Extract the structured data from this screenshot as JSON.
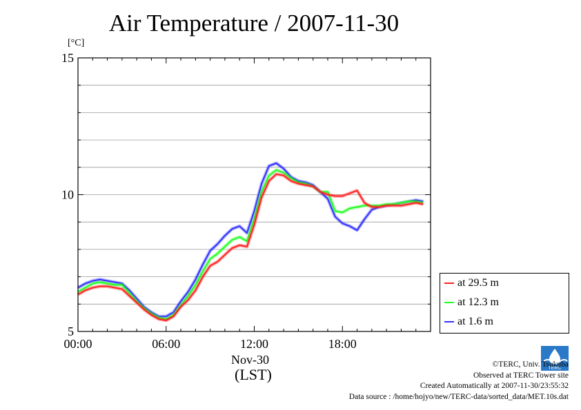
{
  "title": "Air Temperature / 2007-11-30",
  "unit_label": "[°C]",
  "date_label": "Nov-30",
  "tz_label": "(LST)",
  "colors": {
    "at_29_5": "#ff2020",
    "at_12_3": "#20ff20",
    "at_1_6": "#3030ff"
  },
  "legend": [
    {
      "label": "at 29.5 m",
      "color": "#ff2020"
    },
    {
      "label": "at 12.3 m",
      "color": "#20ff20"
    },
    {
      "label": "at 1.6 m",
      "color": "#3030ff"
    }
  ],
  "credits": {
    "copyright": "©TERC, Univ. Tsukuba",
    "site": "Observed at TERC Tower site",
    "created": "Created Automatically at 2007-11-30/23:55:32",
    "source": "Data source : /home/hojyo/new/TERC-data/sorted_data/MET.10s.dat"
  },
  "logo_text": "TERC",
  "chart_data": {
    "type": "line",
    "title": "Air Temperature / 2007-11-30",
    "ylabel": "[°C]",
    "xlabel": "(LST)",
    "ylim": [
      5,
      15
    ],
    "xlim": [
      0,
      24
    ],
    "x_ticks": [
      "00:00",
      "06:00",
      "12:00",
      "18:00"
    ],
    "y_ticks": [
      "5",
      "10",
      "15"
    ],
    "grid": true,
    "legend_position": "right",
    "x": [
      0,
      0.5,
      1,
      1.5,
      2,
      2.5,
      3,
      3.5,
      4,
      4.5,
      5,
      5.5,
      6,
      6.5,
      7,
      7.5,
      8,
      8.5,
      9,
      9.5,
      10,
      10.5,
      11,
      11.5,
      12,
      12.5,
      13,
      13.5,
      14,
      14.5,
      15,
      15.5,
      16,
      16.5,
      17,
      17.5,
      18,
      18.5,
      19,
      19.5,
      20,
      20.5,
      21,
      21.5,
      22,
      22.5,
      23,
      23.5
    ],
    "series": [
      {
        "name": "at 29.5 m",
        "values": [
          6.35,
          6.5,
          6.6,
          6.65,
          6.65,
          6.6,
          6.55,
          6.3,
          6.05,
          5.8,
          5.6,
          5.45,
          5.4,
          5.55,
          5.9,
          6.15,
          6.5,
          7.0,
          7.4,
          7.55,
          7.8,
          8.05,
          8.15,
          8.1,
          8.9,
          9.9,
          10.5,
          10.75,
          10.7,
          10.5,
          10.4,
          10.35,
          10.3,
          10.1,
          10.0,
          9.95,
          9.95,
          10.05,
          10.15,
          9.7,
          9.55,
          9.55,
          9.6,
          9.6,
          9.6,
          9.65,
          9.7,
          9.65
        ]
      },
      {
        "name": "at 12.3 m",
        "values": [
          6.45,
          6.6,
          6.75,
          6.8,
          6.75,
          6.7,
          6.7,
          6.4,
          6.1,
          5.85,
          5.65,
          5.5,
          5.45,
          5.6,
          5.95,
          6.3,
          6.7,
          7.2,
          7.65,
          7.85,
          8.1,
          8.35,
          8.45,
          8.3,
          9.1,
          10.1,
          10.7,
          10.9,
          10.8,
          10.6,
          10.45,
          10.4,
          10.3,
          10.1,
          10.1,
          9.4,
          9.35,
          9.5,
          9.55,
          9.6,
          9.6,
          9.6,
          9.65,
          9.65,
          9.7,
          9.75,
          9.75,
          9.7
        ]
      },
      {
        "name": "at 1.6 m",
        "values": [
          6.6,
          6.75,
          6.85,
          6.9,
          6.85,
          6.8,
          6.75,
          6.5,
          6.2,
          5.9,
          5.7,
          5.55,
          5.55,
          5.7,
          6.1,
          6.45,
          6.9,
          7.45,
          7.95,
          8.2,
          8.5,
          8.75,
          8.85,
          8.6,
          9.4,
          10.4,
          11.05,
          11.15,
          10.95,
          10.65,
          10.5,
          10.45,
          10.35,
          10.1,
          9.85,
          9.2,
          8.95,
          8.85,
          8.7,
          9.1,
          9.45,
          9.55,
          9.6,
          9.65,
          9.7,
          9.75,
          9.8,
          9.75
        ]
      }
    ]
  }
}
